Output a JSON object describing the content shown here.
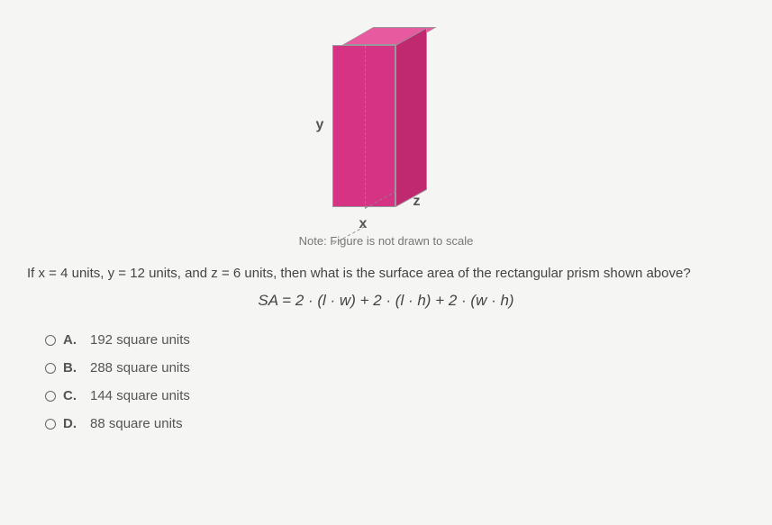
{
  "prism": {
    "labels": {
      "x": "x",
      "y": "y",
      "z": "z"
    },
    "colors": {
      "front": "#d63384",
      "top": "#e85aa0",
      "right": "#c02870",
      "hidden_edge": "#888888"
    }
  },
  "note": "Note: Figure is not drawn to scale",
  "question": "If x = 4 units, y = 12 units, and z = 6 units, then what is the surface area of the rectangular prism shown above?",
  "formula": "SA = 2 · (l · w) + 2 · (l · h) + 2 · (w · h)",
  "options": [
    {
      "letter": "A.",
      "text": "192 square units"
    },
    {
      "letter": "B.",
      "text": "288 square units"
    },
    {
      "letter": "C.",
      "text": "144 square units"
    },
    {
      "letter": "D.",
      "text": "88 square units"
    }
  ]
}
